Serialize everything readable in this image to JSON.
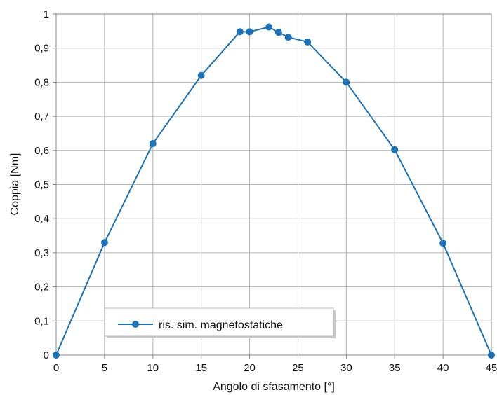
{
  "chart_data": {
    "type": "line",
    "title": "",
    "xlabel": "Angolo di sfasamento [°]",
    "ylabel": "Coppia [Nm]",
    "xlim": [
      0,
      45
    ],
    "ylim": [
      0,
      1
    ],
    "x_ticks": [
      "0",
      "5",
      "10",
      "15",
      "20",
      "25",
      "30",
      "35",
      "40",
      "45"
    ],
    "y_ticks": [
      "0",
      "0,1",
      "0,2",
      "0,3",
      "0,4",
      "0,5",
      "0,6",
      "0,7",
      "0,8",
      "0,9",
      "1"
    ],
    "grid": true,
    "legend_position": "bottom-left",
    "series": [
      {
        "name": "ris. sim. magnetostatiche",
        "color": "#1a72b8",
        "x": [
          0,
          5,
          10,
          15,
          19,
          20,
          22,
          23,
          24,
          26,
          30,
          35,
          40,
          45
        ],
        "y": [
          0,
          0.33,
          0.62,
          0.82,
          0.948,
          0.948,
          0.962,
          0.946,
          0.932,
          0.918,
          0.8,
          0.602,
          0.328,
          0
        ]
      }
    ]
  }
}
